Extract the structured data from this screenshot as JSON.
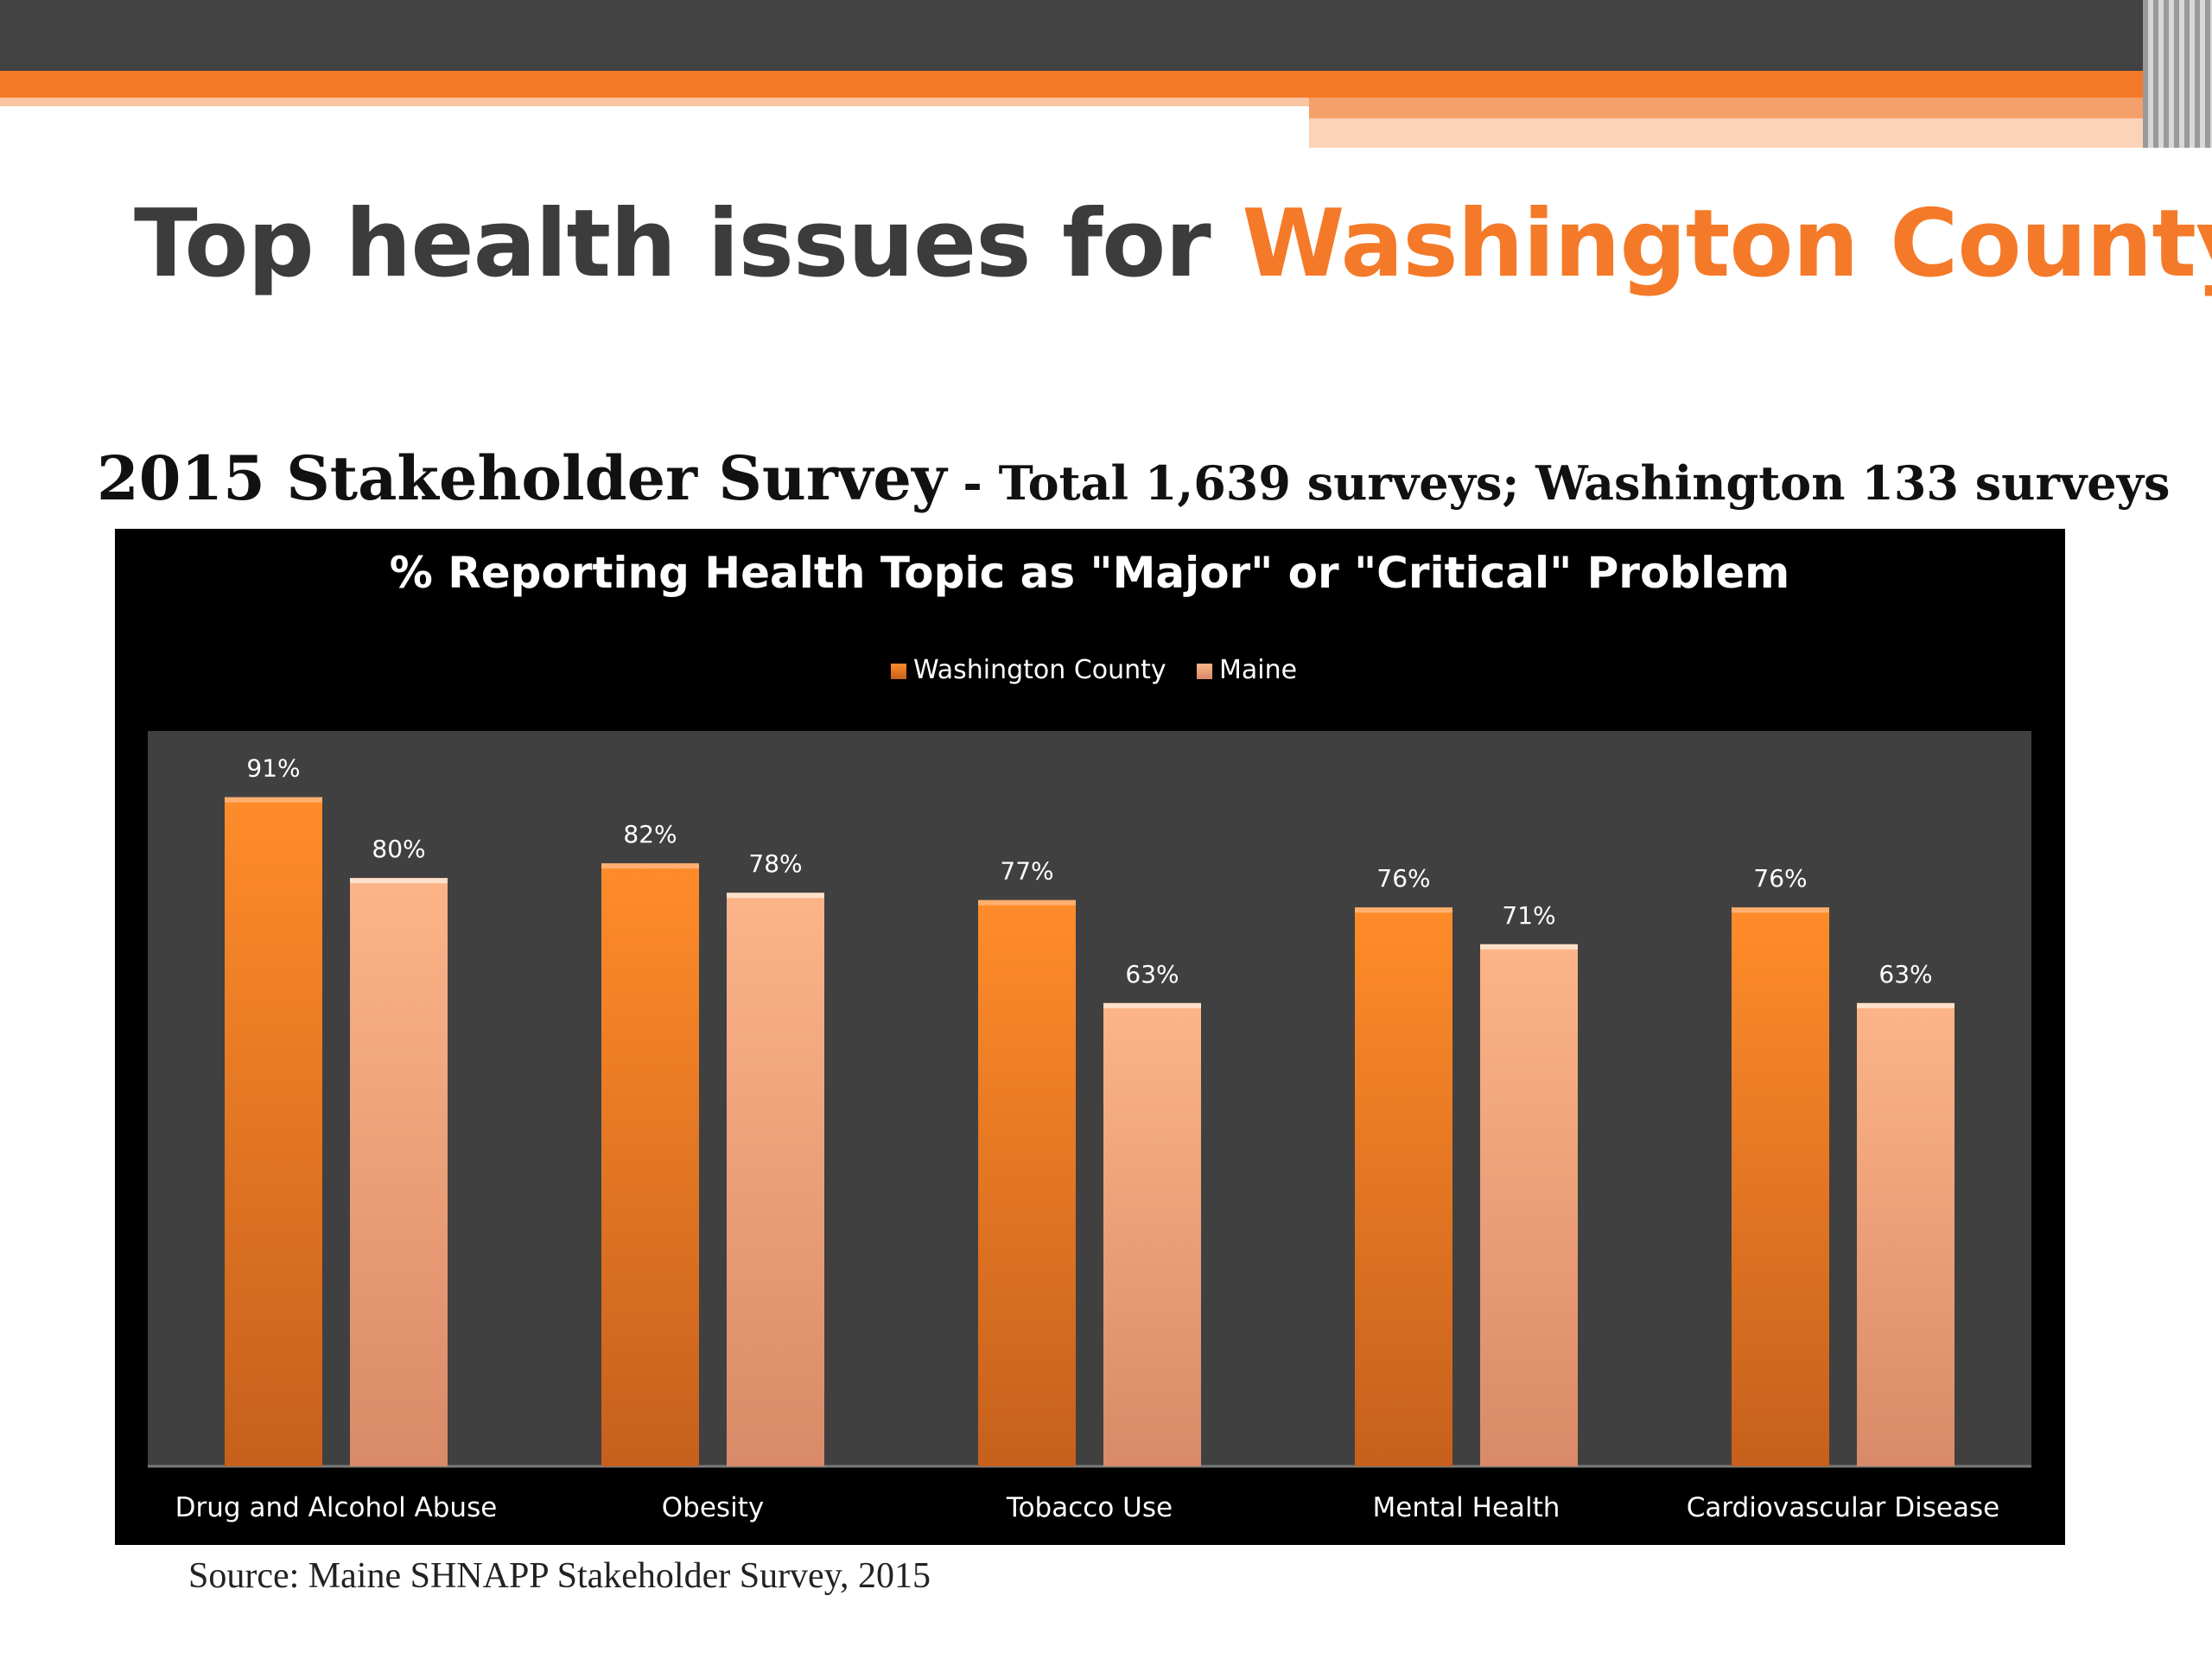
{
  "slide": {
    "title_prefix": "Top health issues for ",
    "title_highlight": "Washington County",
    "subtitle_main": "2015 Stakeholder Survey",
    "subtitle_detail": " - Total 1,639 surveys; Washington 133 surveys",
    "source": "Source: Maine SHNAPP Stakeholder Survey, 2015"
  },
  "colors": {
    "accent": "#f47a29",
    "washington": "#f08a2a",
    "maine": "#f7b48a",
    "chart_background": "#000000",
    "plot_background": "#404040"
  },
  "chart_data": {
    "type": "bar",
    "title": "% Reporting Health Topic as \"Major\" or \"Critical\" Problem",
    "categories": [
      "Drug and Alcohol Abuse",
      "Obesity",
      "Tobacco Use",
      "Mental Health",
      "Cardiovascular Disease"
    ],
    "series": [
      {
        "name": "Washington County",
        "values": [
          91,
          82,
          77,
          76,
          76
        ]
      },
      {
        "name": "Maine",
        "values": [
          80,
          78,
          63,
          71,
          63
        ]
      }
    ],
    "value_suffix": "%",
    "ylim": [
      0,
      100
    ],
    "legend_position": "top-center",
    "grid": false,
    "xlabel": "",
    "ylabel": ""
  }
}
